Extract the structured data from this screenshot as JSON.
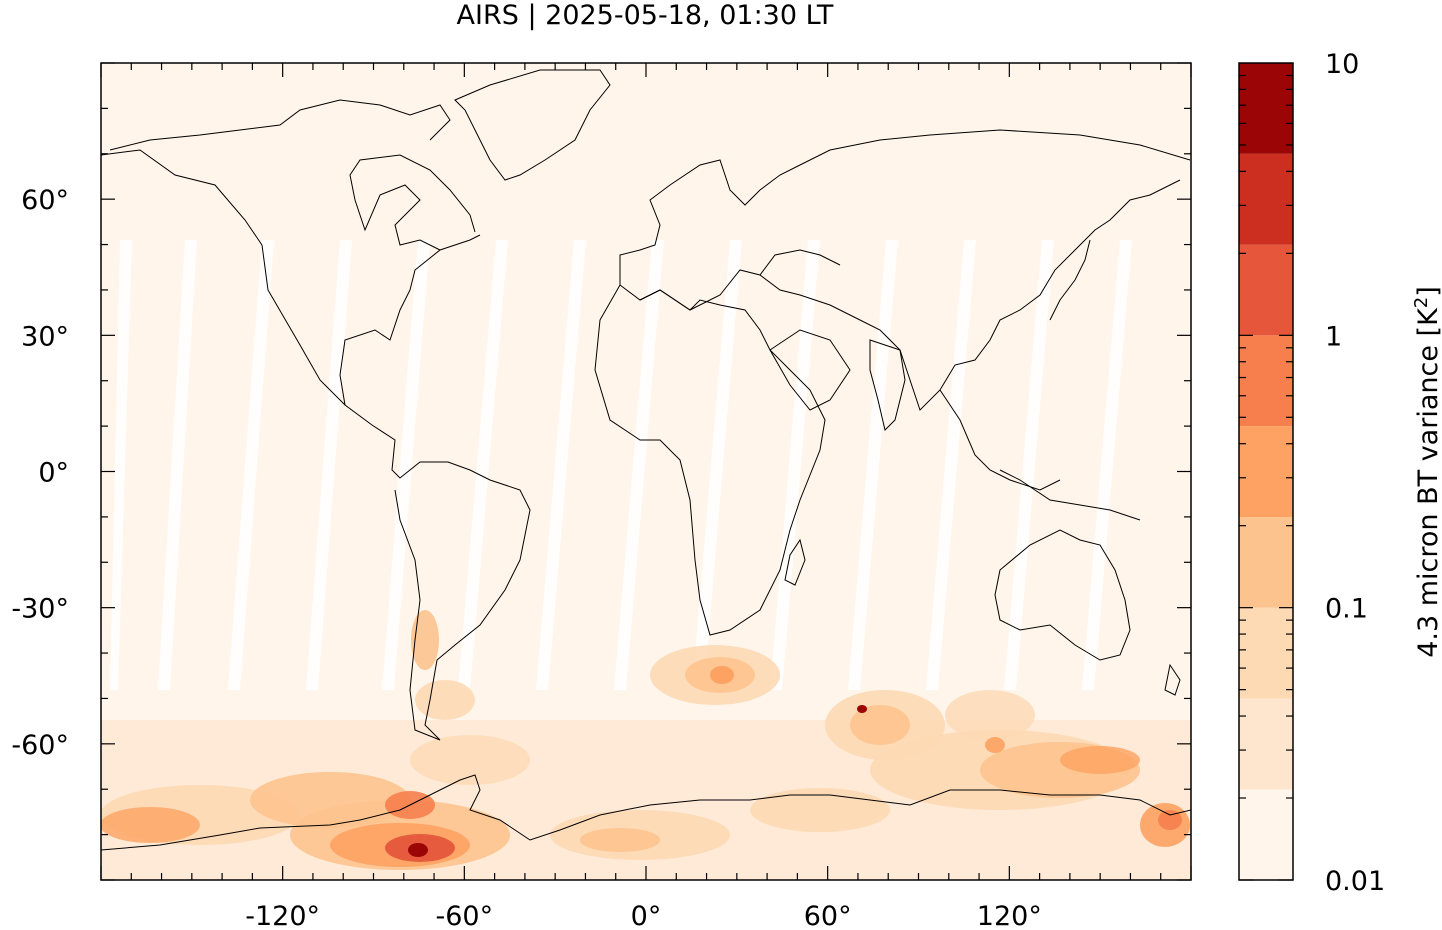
{
  "title": "AIRS | 2025-05-18, 01:30 LT",
  "map": {
    "projection": "equirectangular",
    "lon_range": [
      -180,
      180
    ],
    "lat_range": [
      -90,
      90
    ],
    "lon_ticks": [
      {
        "value": -120,
        "label": "-120°"
      },
      {
        "value": -60,
        "label": "-60°"
      },
      {
        "value": 0,
        "label": "0°"
      },
      {
        "value": 60,
        "label": "60°"
      },
      {
        "value": 120,
        "label": "120°"
      }
    ],
    "lat_ticks": [
      {
        "value": 60,
        "label": "60°"
      },
      {
        "value": 30,
        "label": "30°"
      },
      {
        "value": 0,
        "label": "0°"
      },
      {
        "value": -30,
        "label": "-30°"
      },
      {
        "value": -60,
        "label": "-60°"
      }
    ],
    "background_color": "#fff5eb",
    "coastline_color": "#000000"
  },
  "colorbar": {
    "label_prefix": "4.3 micron BT variance [K",
    "label_sup": "2",
    "label_suffix": "]",
    "scale": "log",
    "range": [
      0.01,
      10
    ],
    "tick_labels": [
      {
        "value": 10,
        "label": "10"
      },
      {
        "value": 1,
        "label": "1"
      },
      {
        "value": 0.1,
        "label": "0.1"
      },
      {
        "value": 0.01,
        "label": "0.01"
      }
    ],
    "bins": [
      {
        "lo": 0.01,
        "hi": 0.0215,
        "color": "#fff5eb"
      },
      {
        "lo": 0.0215,
        "hi": 0.0464,
        "color": "#fee6ce"
      },
      {
        "lo": 0.0464,
        "hi": 0.1,
        "color": "#fdd9b4"
      },
      {
        "lo": 0.1,
        "hi": 0.215,
        "color": "#fdc38f"
      },
      {
        "lo": 0.215,
        "hi": 0.464,
        "color": "#fda262"
      },
      {
        "lo": 0.464,
        "hi": 1.0,
        "color": "#f67f4d"
      },
      {
        "lo": 1.0,
        "hi": 2.15,
        "color": "#e5563b"
      },
      {
        "lo": 2.15,
        "hi": 4.64,
        "color": "#cc2f20"
      },
      {
        "lo": 4.64,
        "hi": 10,
        "color": "#9b0505"
      }
    ]
  },
  "features": [
    {
      "name": "southern-ocean-enhancement",
      "lon": [
        -180,
        180
      ],
      "lat": [
        -85,
        -50
      ],
      "level": 0.15
    },
    {
      "name": "drake-passage-hotspot",
      "lon": -72,
      "lat": -77,
      "level": 5
    },
    {
      "name": "south-of-africa-patch",
      "lon": 20,
      "lat": -42,
      "level": 0.4
    },
    {
      "name": "southern-indian-ocean-patch",
      "lon": 70,
      "lat": -52,
      "level": 0.3
    }
  ]
}
